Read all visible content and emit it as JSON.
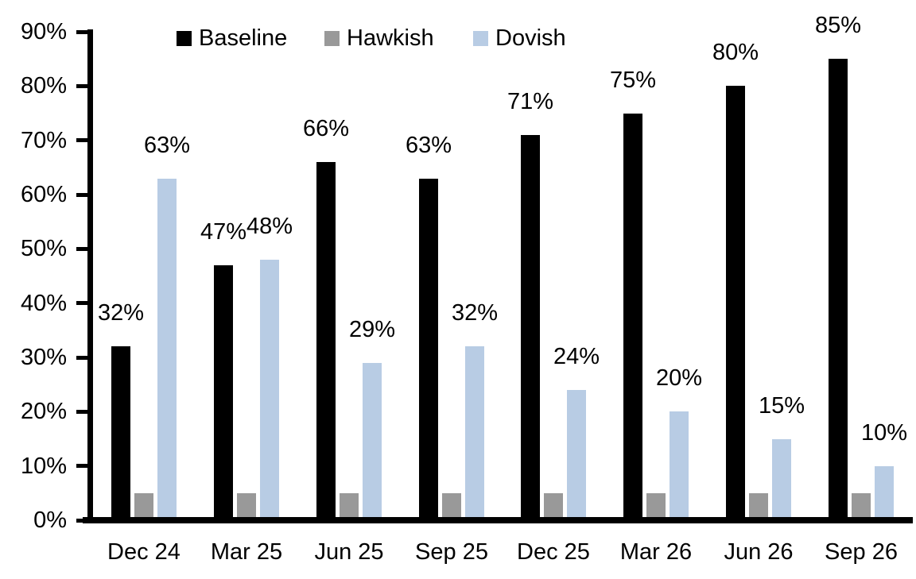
{
  "chart_data": {
    "type": "bar",
    "title": "",
    "categories": [
      "Dec 24",
      "Mar 25",
      "Jun 25",
      "Sep 25",
      "Dec 25",
      "Mar 26",
      "Jun 26",
      "Sep 26"
    ],
    "series": [
      {
        "name": "Baseline",
        "color": "#000000",
        "values": [
          32,
          47,
          66,
          63,
          71,
          75,
          80,
          85
        ],
        "data_labels": [
          "32%",
          "47%",
          "66%",
          "63%",
          "71%",
          "75%",
          "80%",
          "85%"
        ]
      },
      {
        "name": "Hawkish",
        "color": "#999999",
        "values": [
          5,
          5,
          5,
          5,
          5,
          5,
          5,
          5
        ],
        "data_labels": [
          "",
          "",
          "",
          "",
          "",
          "",
          "",
          ""
        ]
      },
      {
        "name": "Dovish",
        "color": "#B8CCE4",
        "values": [
          63,
          48,
          29,
          32,
          24,
          20,
          15,
          10
        ],
        "data_labels": [
          "63%",
          "48%",
          "29%",
          "32%",
          "24%",
          "20%",
          "15%",
          "10%"
        ]
      }
    ],
    "y_axis": {
      "min": 0,
      "max": 90,
      "ticks": [
        "0%",
        "10%",
        "20%",
        "30%",
        "40%",
        "50%",
        "60%",
        "70%",
        "80%",
        "90%"
      ]
    },
    "grid": false,
    "legend_position": "top",
    "axis_color": "#000000",
    "background_color": "#FFFFFF"
  }
}
